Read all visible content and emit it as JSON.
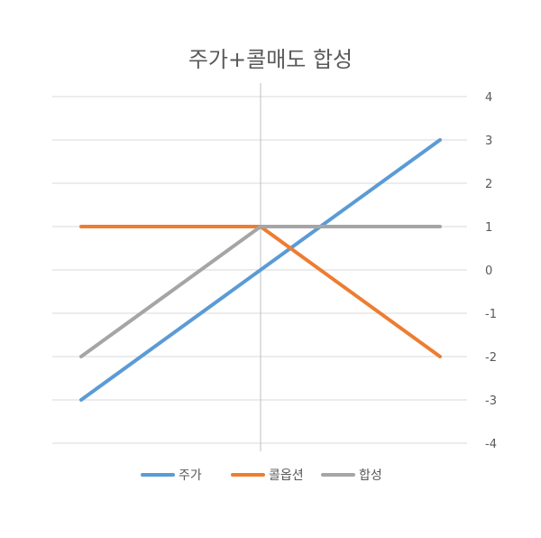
{
  "chart_data": {
    "type": "line",
    "title": "주가+콜매도 합성",
    "xlabel": "",
    "ylabel": "",
    "x": [
      0,
      1,
      2
    ],
    "ylim": [
      -4,
      4
    ],
    "yticks": [
      4,
      3,
      2,
      1,
      0,
      -1,
      -2,
      -3,
      -4
    ],
    "grid": true,
    "y_axis_side": "right",
    "legend_position": "bottom",
    "series": [
      {
        "name": "주가",
        "values": [
          -3,
          0,
          3
        ],
        "color": "#5b9bd5"
      },
      {
        "name": "콜옵션",
        "values": [
          1,
          1,
          -2
        ],
        "color": "#ed7d31"
      },
      {
        "name": "합성",
        "values": [
          -2,
          1,
          1
        ],
        "color": "#a5a5a5"
      }
    ]
  }
}
